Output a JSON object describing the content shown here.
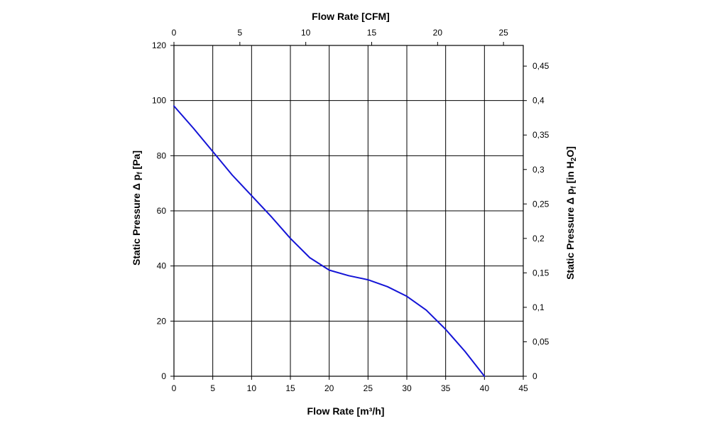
{
  "chart_data": {
    "type": "line",
    "x_bottom": {
      "label": "Flow Rate [m³/h]",
      "range": [
        0,
        45
      ],
      "ticks": [
        "0",
        "5",
        "10",
        "15",
        "20",
        "25",
        "30",
        "35",
        "40",
        "45"
      ]
    },
    "x_top": {
      "label": "Flow Rate [CFM]",
      "range": [
        0,
        26.5
      ],
      "ticks": [
        "0",
        "5",
        "10",
        "15",
        "20",
        "25"
      ]
    },
    "y_left": {
      "label_main": "Static Pressure Δ p",
      "label_sub": "f",
      "label_unit": " [Pa]",
      "range": [
        0,
        120
      ],
      "ticks": [
        "0",
        "20",
        "40",
        "60",
        "80",
        "100",
        "120"
      ]
    },
    "y_right": {
      "label_main": "Static Pressure Δ p",
      "label_sub": "f",
      "label_unit_pre": " [in H",
      "label_unit_sub": "2",
      "label_unit_post": "O]",
      "range": [
        0,
        0.48
      ],
      "ticks": [
        "0",
        "0,05",
        "0,1",
        "0,15",
        "0,2",
        "0,25",
        "0,3",
        "0,35",
        "0,4",
        "0,45"
      ]
    },
    "grid": true,
    "series": [
      {
        "color": "#1414d6",
        "x": [
          0,
          2.5,
          5,
          7.5,
          10,
          12.5,
          15,
          17.5,
          20,
          22.5,
          25,
          27.5,
          30,
          32.5,
          35,
          37.5,
          40
        ],
        "y": [
          98,
          90,
          81.5,
          73,
          65.5,
          58,
          50,
          43,
          38.5,
          36.5,
          35,
          32.5,
          29,
          24,
          17,
          9,
          0
        ]
      }
    ]
  }
}
